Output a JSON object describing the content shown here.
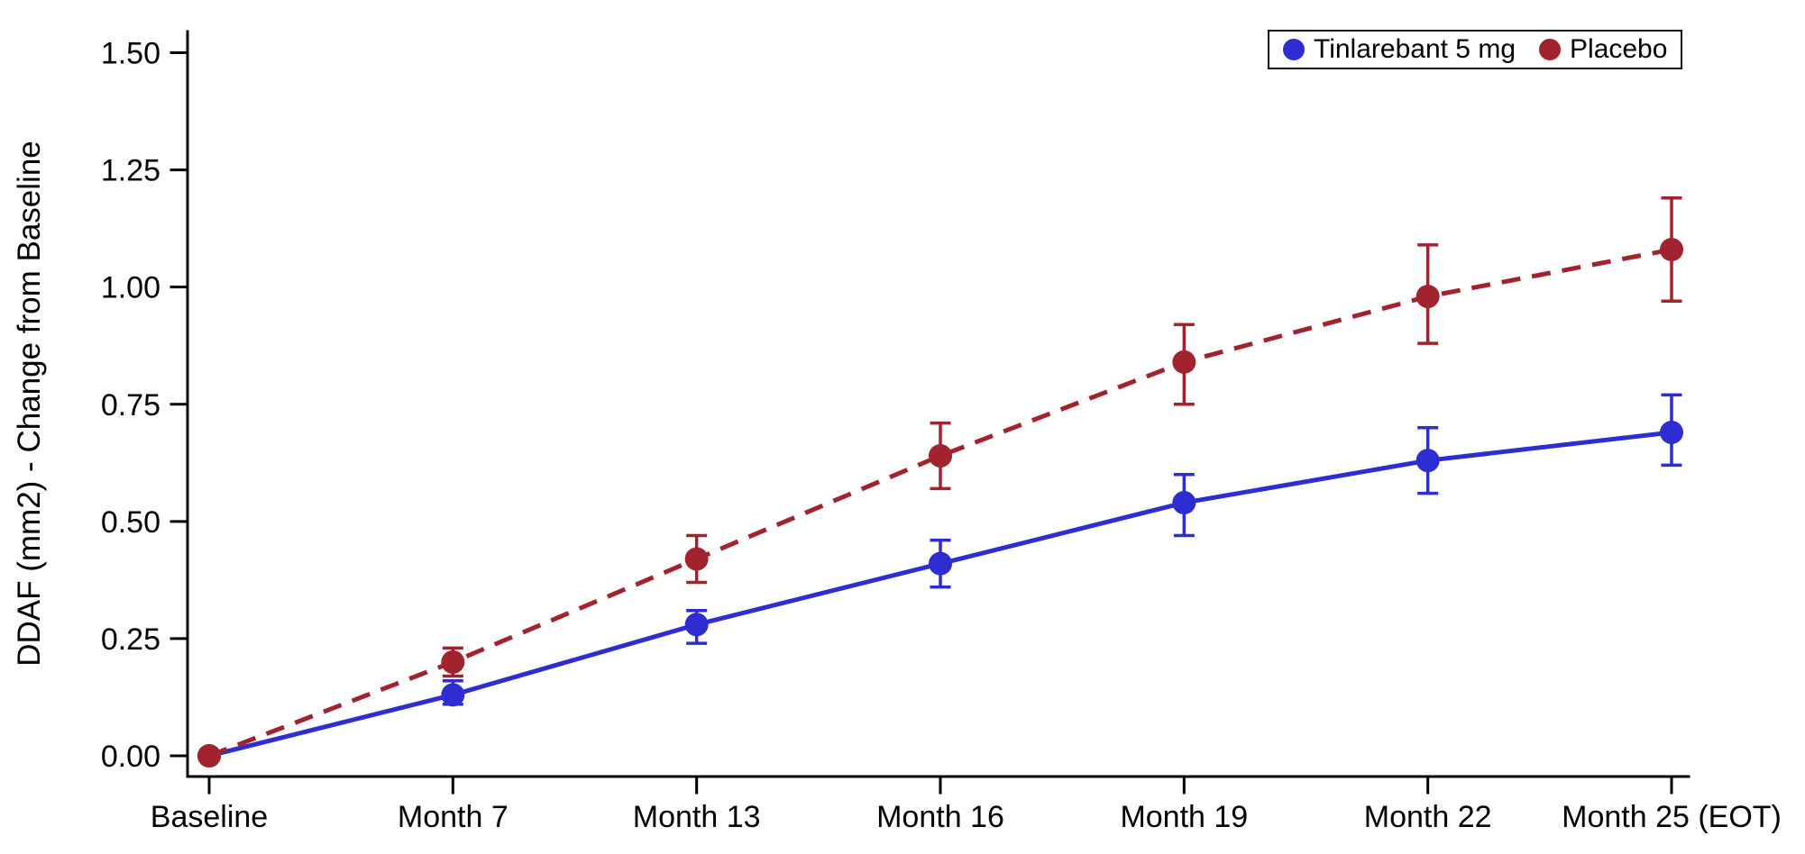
{
  "figure": {
    "background": "#ffffff",
    "text_color": "#000000",
    "axis_color": "#000000"
  },
  "chart_data": {
    "type": "line",
    "title": "",
    "xlabel": "",
    "ylabel": "DDAF (mm2) - Change from Baseline",
    "categories": [
      "Baseline",
      "Month 7",
      "Month 13",
      "Month 16",
      "Month 19",
      "Month 22",
      "Month 25 (EOT)"
    ],
    "ylim": [
      0,
      1.5
    ],
    "yticks": [
      {
        "value": 0.0,
        "label": "0.00"
      },
      {
        "value": 0.25,
        "label": "0.25"
      },
      {
        "value": 0.5,
        "label": "0.50"
      },
      {
        "value": 0.75,
        "label": "0.75"
      },
      {
        "value": 1.0,
        "label": "1.00"
      },
      {
        "value": 1.25,
        "label": "1.25"
      },
      {
        "value": 1.5,
        "label": "1.50"
      }
    ],
    "grid": false,
    "legend_position": "top-right",
    "series": [
      {
        "name": "Tinlarebant 5 mg",
        "color": "#2d2dd2",
        "line_style": "solid",
        "marker": "circle",
        "values": [
          0.0,
          0.13,
          0.28,
          0.41,
          0.54,
          0.63,
          0.69
        ],
        "ci_low": [
          null,
          0.11,
          0.24,
          0.36,
          0.47,
          0.56,
          0.62
        ],
        "ci_high": [
          null,
          0.16,
          0.31,
          0.46,
          0.6,
          0.7,
          0.77
        ]
      },
      {
        "name": "Placebo",
        "color": "#a0232d",
        "line_style": "dashed",
        "marker": "circle",
        "values": [
          0.0,
          0.2,
          0.42,
          0.64,
          0.84,
          0.98,
          1.08
        ],
        "ci_low": [
          null,
          0.17,
          0.37,
          0.57,
          0.75,
          0.88,
          0.97
        ],
        "ci_high": [
          null,
          0.23,
          0.47,
          0.71,
          0.92,
          1.09,
          1.19
        ]
      }
    ]
  }
}
